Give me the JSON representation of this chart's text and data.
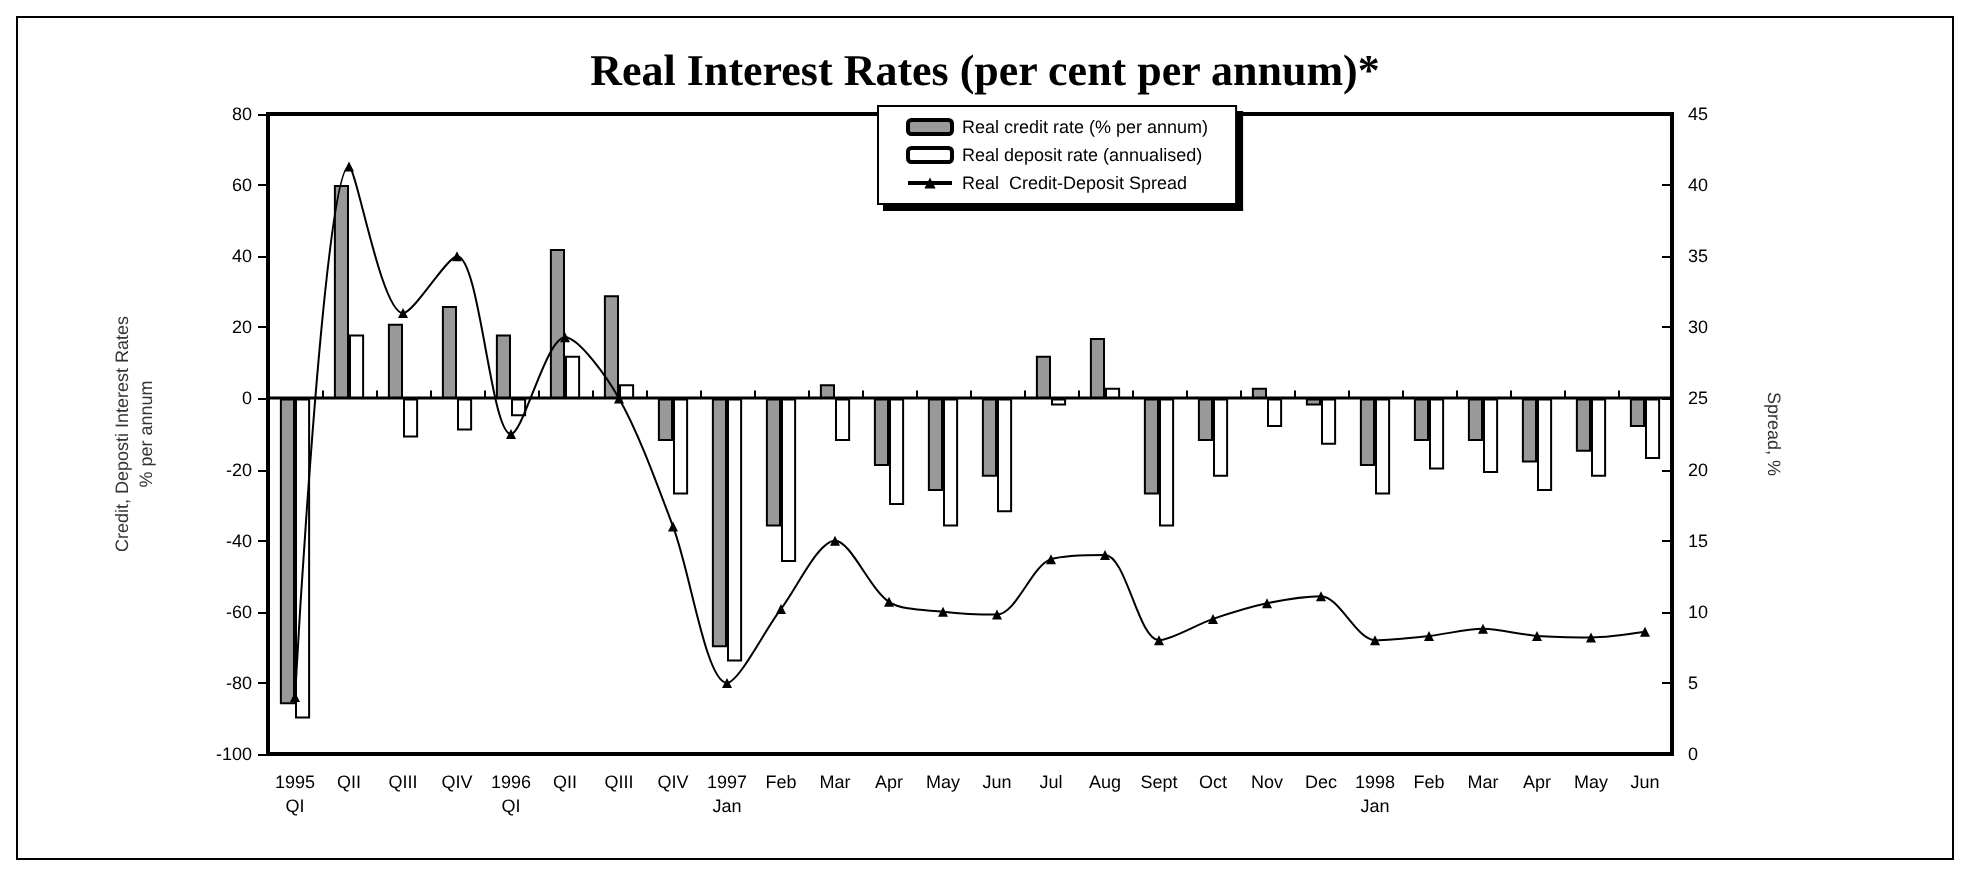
{
  "chart_data": {
    "type": "bar",
    "title": "Real Interest Rates (per cent per annum)*",
    "ylabel": "Credit, Deposti Interest Rates\n% per annum",
    "y2label": "Spread, %",
    "categories": [
      "1995\nQI",
      "QII",
      "QIII",
      "QIV",
      "1996\nQI",
      "QII",
      "QIII",
      "QIV",
      "1997\nJan",
      "Feb",
      "Mar",
      "Apr",
      "May",
      "Jun",
      "Jul",
      "Aug",
      "Sept",
      "Oct",
      "Nov",
      "Dec",
      "1998\nJan",
      "Feb",
      "Mar",
      "Apr",
      "May",
      "Jun"
    ],
    "series": [
      {
        "name": "Real credit rate (% per annum)",
        "color": "#999999",
        "values": [
          -86,
          60,
          21,
          26,
          18,
          42,
          29,
          -12,
          -70,
          -36,
          4,
          -19,
          -26,
          -22,
          12,
          17,
          -27,
          -12,
          3,
          -2,
          -19,
          -12,
          -12,
          -18,
          -15,
          -8
        ]
      },
      {
        "name": "Real deposit rate (annualised)",
        "color": "#ffffff",
        "values": [
          -90,
          18,
          -11,
          -9,
          -5,
          12,
          4,
          -27,
          -74,
          -46,
          -12,
          -30,
          -36,
          -32,
          -2,
          3,
          -36,
          -22,
          -8,
          -13,
          -27,
          -20,
          -21,
          -26,
          -22,
          -17
        ]
      },
      {
        "name": "Real  Credit-Deposit Spread",
        "type": "line",
        "axis": "y2",
        "color": "#000000",
        "marker": "triangle",
        "values": [
          4,
          41.3,
          31,
          35,
          22.5,
          29.3,
          25,
          16,
          5,
          10.2,
          15,
          10.7,
          10,
          9.8,
          13.7,
          14,
          8,
          9.5,
          10.6,
          11.1,
          8,
          8.3,
          8.8,
          8.3,
          8.2,
          8.6
        ]
      }
    ],
    "ylim": [
      -100,
      80
    ],
    "yticks": [
      -100,
      -80,
      -60,
      -40,
      -20,
      0,
      20,
      40,
      60,
      80
    ],
    "y2lim": [
      0,
      45
    ],
    "y2ticks": [
      0,
      5,
      10,
      15,
      20,
      25,
      30,
      35,
      40,
      45
    ],
    "legend": "top"
  }
}
